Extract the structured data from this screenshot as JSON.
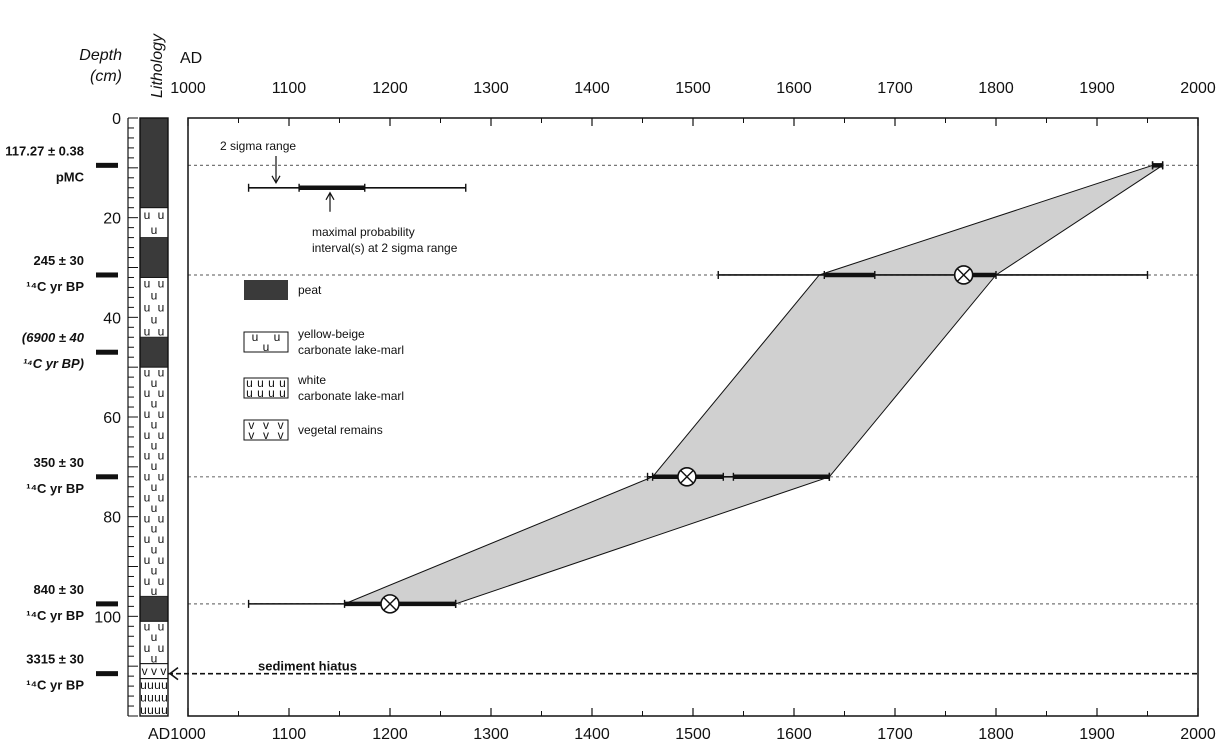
{
  "chart_data": {
    "type": "scatter",
    "title": "",
    "axes": {
      "x_top_label": "AD",
      "x_bottom_label": "AD",
      "y_label_line1": "Depth",
      "y_label_line2": "(cm)",
      "lithology_label": "Lithology",
      "xlim": [
        1000,
        2000
      ],
      "ylim": [
        0,
        120
      ],
      "x_ticks": [
        "1000",
        "1100",
        "1200",
        "1300",
        "1400",
        "1500",
        "1600",
        "1700",
        "1800",
        "1900",
        "2000"
      ],
      "y_ticks": [
        "0",
        "20",
        "40",
        "60",
        "80",
        "100"
      ]
    },
    "dated_samples": [
      {
        "depth": 9.5,
        "label_line1": "117.27 ± 0.38",
        "label_line2": "pMC",
        "italic": false,
        "range2s": [
          1955,
          1965
        ],
        "max_prob": [
          1955,
          1965
        ],
        "median": null
      },
      {
        "depth": 31.5,
        "label_line1": "245 ± 30",
        "label_line2": "¹⁴C yr BP",
        "italic": false,
        "range2s": [
          1525,
          1950
        ],
        "max_prob": [
          1630,
          1680
        ],
        "max_prob_2": [
          1760,
          1800
        ],
        "median": 1768
      },
      {
        "depth": 47,
        "label_line1": "(6900 ± 40",
        "label_line2": "¹⁴C yr BP)",
        "italic": true,
        "range2s": null,
        "max_prob": null,
        "median": null
      },
      {
        "depth": 72,
        "label_line1": "350 ± 30",
        "label_line2": "¹⁴C yr BP",
        "italic": false,
        "range2s": [
          1455,
          1635
        ],
        "max_prob": [
          1460,
          1530
        ],
        "max_prob_2": [
          1540,
          1635
        ],
        "median": 1494
      },
      {
        "depth": 97.5,
        "label_line1": "840 ± 30",
        "label_line2": "¹⁴C yr BP",
        "italic": false,
        "range2s": [
          1060,
          1265
        ],
        "max_prob": [
          1155,
          1265
        ],
        "median": 1200
      },
      {
        "depth": 111.5,
        "label_line1": "3315 ± 30",
        "label_line2": "¹⁴C yr BP",
        "italic": false,
        "range2s": null,
        "max_prob": null,
        "median": null
      }
    ],
    "envelope_polygon": [
      [
        1965,
        9.5
      ],
      [
        1800,
        31.5
      ],
      [
        1635,
        72
      ],
      [
        1265,
        97.5
      ],
      [
        1155,
        97.5
      ],
      [
        1460,
        72
      ],
      [
        1625,
        31.5
      ],
      [
        1955,
        9.5
      ]
    ],
    "dashed_lines_depths": [
      9.5,
      31.5,
      72,
      97.5
    ],
    "hiatus": {
      "depth": 111.5,
      "label": "sediment hiatus"
    },
    "example_bar": {
      "depth": 14,
      "range2s": [
        1060,
        1275
      ],
      "max_prob": [
        1110,
        1175
      ],
      "label_range": "2 sigma range",
      "label_maxprob_line1": "maximal probability",
      "label_maxprob_line2": "interval(s) at 2 sigma range"
    },
    "legend": [
      {
        "symbol": "peat",
        "label_line1": "peat",
        "label_line2": ""
      },
      {
        "symbol": "yellow-marl",
        "label_line1": "yellow-beige",
        "label_line2": "carbonate lake-marl"
      },
      {
        "symbol": "white-marl",
        "label_line1": "white",
        "label_line2": "carbonate lake-marl"
      },
      {
        "symbol": "vegetal",
        "label_line1": "vegetal remains",
        "label_line2": ""
      }
    ],
    "lithology": [
      {
        "from": 0,
        "to": 18,
        "type": "peat"
      },
      {
        "from": 18,
        "to": 24,
        "type": "yellow-marl"
      },
      {
        "from": 24,
        "to": 32,
        "type": "peat"
      },
      {
        "from": 32,
        "to": 44,
        "type": "yellow-marl"
      },
      {
        "from": 44,
        "to": 50,
        "type": "peat"
      },
      {
        "from": 50,
        "to": 96,
        "type": "yellow-marl"
      },
      {
        "from": 96,
        "to": 101,
        "type": "peat"
      },
      {
        "from": 101,
        "to": 109.5,
        "type": "yellow-marl"
      },
      {
        "from": 109.5,
        "to": 112.5,
        "type": "vegetal"
      },
      {
        "from": 112.5,
        "to": 120,
        "type": "white-marl"
      }
    ],
    "colors": {
      "envelope": "#d0d0d0",
      "peat": "#3a3a3a",
      "line": "#111111"
    }
  }
}
